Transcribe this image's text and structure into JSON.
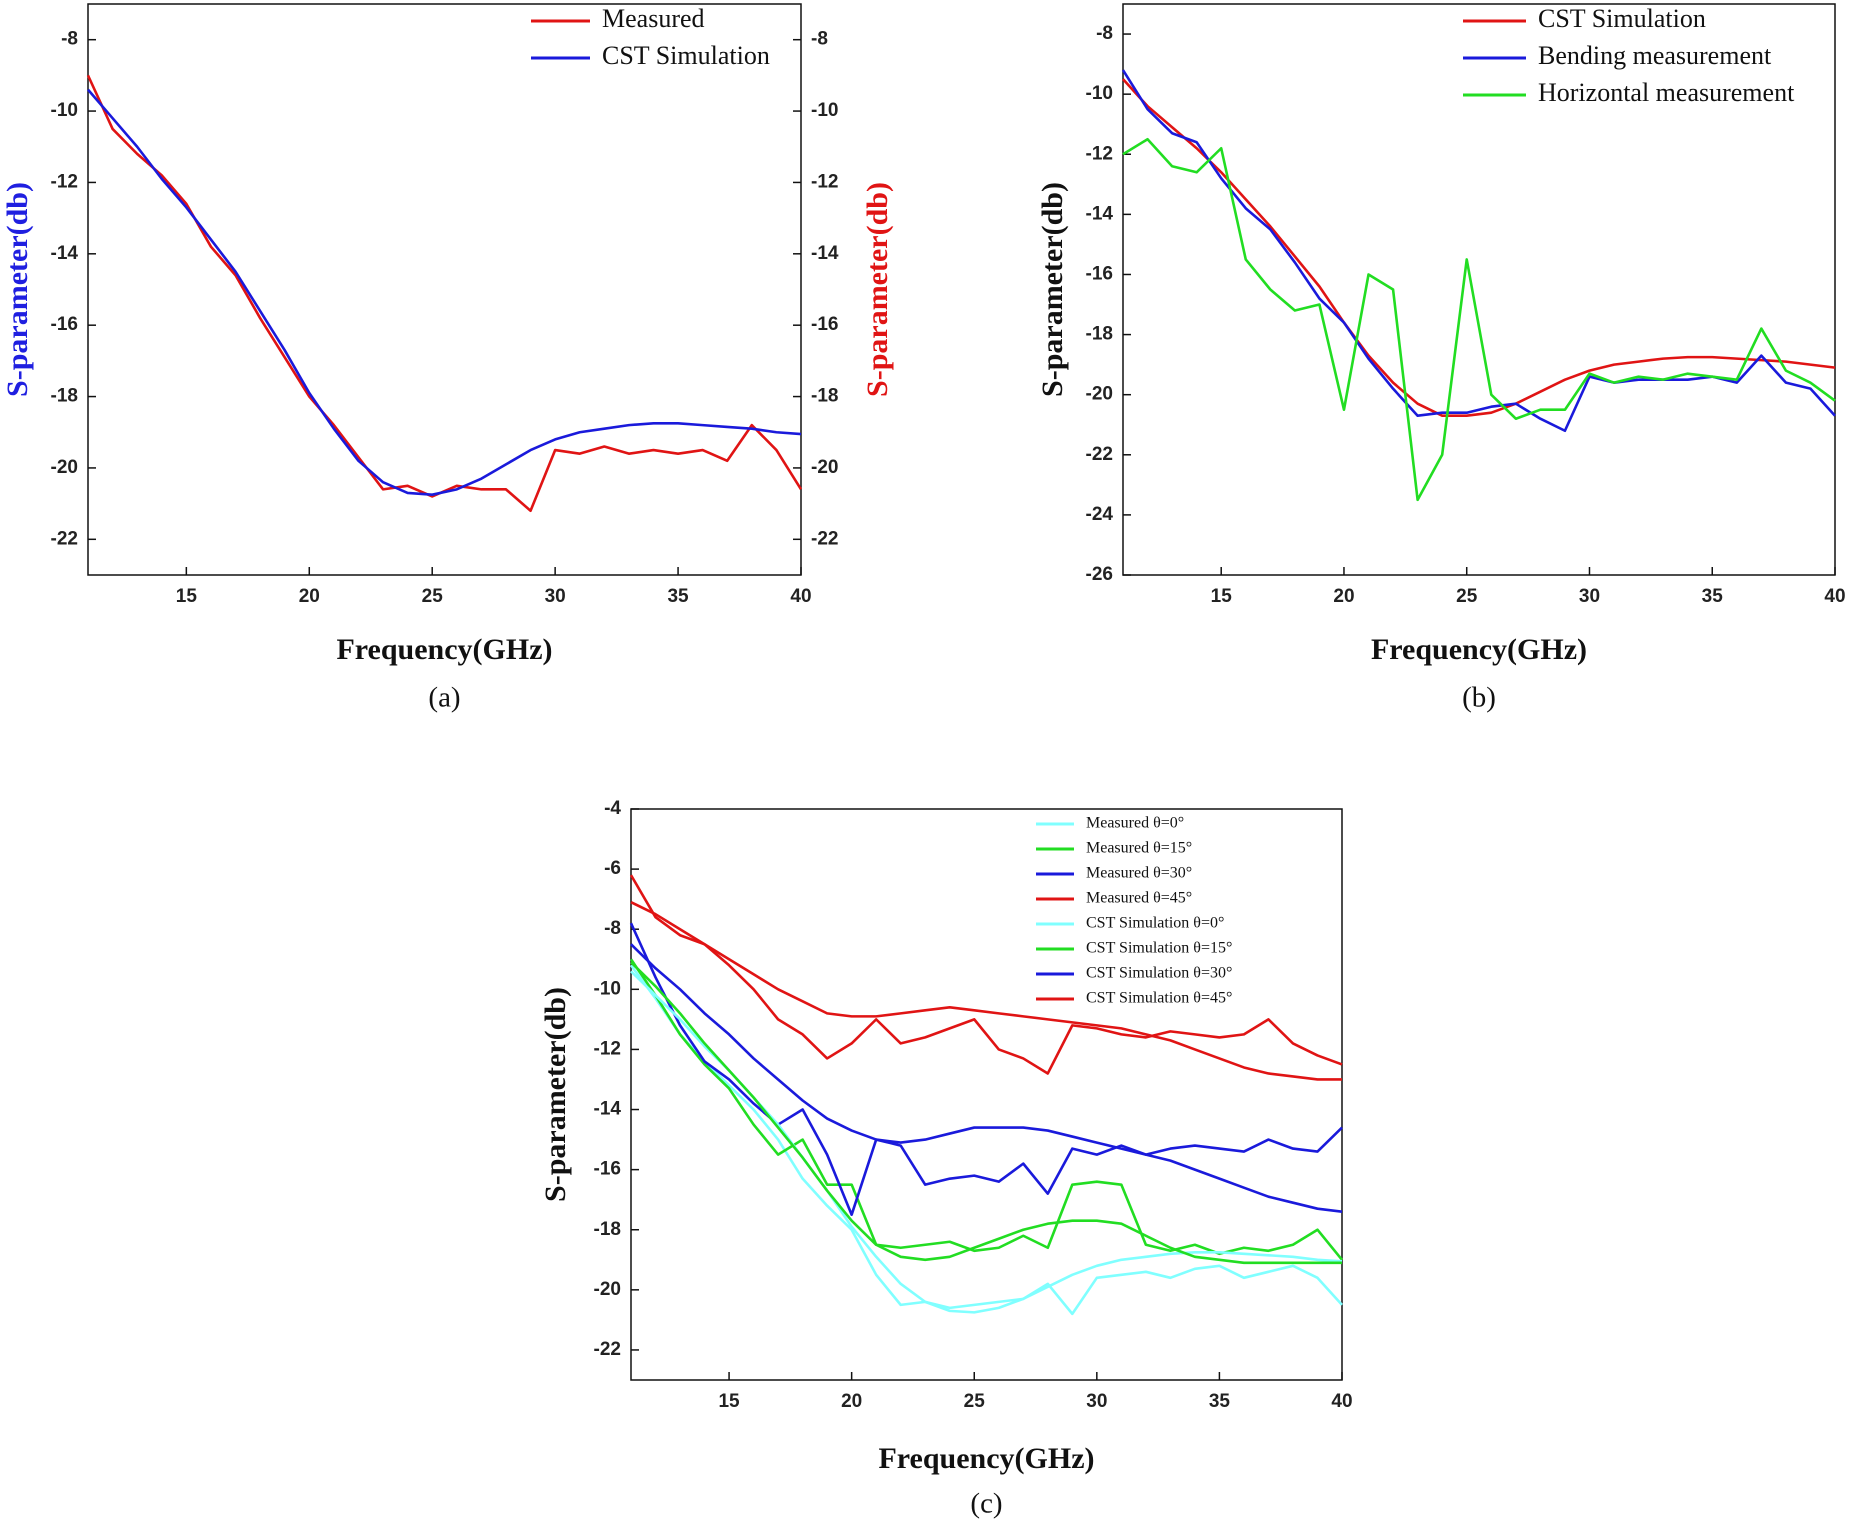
{
  "chart_data": [
    {
      "type": "line",
      "caption": "(a)",
      "xlabel": "Frequency(GHz)",
      "ylabel": "S-parameter(db)",
      "y2label": "S-parameter(db)",
      "xlim": [
        11,
        40
      ],
      "xticks": [
        15,
        20,
        25,
        30,
        35,
        40
      ],
      "ylim": [
        -23,
        -7
      ],
      "yticks": [
        -8,
        -10,
        -12,
        -14,
        -16,
        -18,
        -20,
        -22
      ],
      "y2lim": [
        -23,
        -7
      ],
      "y2ticks": [
        -8,
        -10,
        -12,
        -14,
        -16,
        -18,
        -20,
        -22
      ],
      "x": [
        11,
        12,
        13,
        14,
        15,
        16,
        17,
        18,
        19,
        20,
        21,
        22,
        23,
        24,
        25,
        26,
        27,
        28,
        29,
        30,
        31,
        32,
        33,
        34,
        35,
        36,
        37,
        38,
        39,
        40
      ],
      "series": [
        {
          "name": "Measured",
          "color": "#e01414",
          "axis": "y2",
          "values": [
            -9.0,
            -10.5,
            -11.2,
            -11.8,
            -12.6,
            -13.8,
            -14.6,
            -15.8,
            -16.9,
            -18.0,
            -18.8,
            -19.7,
            -20.6,
            -20.5,
            -20.8,
            -20.5,
            -20.6,
            -20.6,
            -21.2,
            -19.5,
            -19.6,
            -19.4,
            -19.6,
            -19.5,
            -19.6,
            -19.5,
            -19.8,
            -18.8,
            -19.5,
            -20.6
          ]
        },
        {
          "name": "CST Simulation",
          "color": "#1a1adb",
          "values": [
            -9.4,
            -10.2,
            -11.0,
            -11.9,
            -12.7,
            -13.6,
            -14.5,
            -15.6,
            -16.7,
            -17.9,
            -18.9,
            -19.8,
            -20.4,
            -20.7,
            -20.75,
            -20.6,
            -20.3,
            -19.9,
            -19.5,
            -19.2,
            -19.0,
            -18.9,
            -18.8,
            -18.75,
            -18.75,
            -18.8,
            -18.85,
            -18.9,
            -19.0,
            -19.05
          ]
        }
      ]
    },
    {
      "type": "line",
      "caption": "(b)",
      "xlabel": "Frequency(GHz)",
      "ylabel": "S-parameter(db)",
      "xlim": [
        11,
        40
      ],
      "xticks": [
        15,
        20,
        25,
        30,
        35,
        40
      ],
      "ylim": [
        -26,
        -7
      ],
      "yticks": [
        -8,
        -10,
        -12,
        -14,
        -16,
        -18,
        -20,
        -22,
        -24,
        -26
      ],
      "x": [
        11,
        12,
        13,
        14,
        15,
        16,
        17,
        18,
        19,
        20,
        21,
        22,
        23,
        24,
        25,
        26,
        27,
        28,
        29,
        30,
        31,
        32,
        33,
        34,
        35,
        36,
        37,
        38,
        39,
        40
      ],
      "series": [
        {
          "name": "CST Simulation",
          "color": "#e01414",
          "values": [
            -9.5,
            -10.4,
            -11.1,
            -11.8,
            -12.6,
            -13.5,
            -14.4,
            -15.4,
            -16.4,
            -17.6,
            -18.7,
            -19.6,
            -20.3,
            -20.7,
            -20.7,
            -20.6,
            -20.3,
            -19.9,
            -19.5,
            -19.2,
            -19.0,
            -18.9,
            -18.8,
            -18.75,
            -18.75,
            -18.8,
            -18.85,
            -18.9,
            -19.0,
            -19.1
          ]
        },
        {
          "name": "Bending measurement",
          "color": "#1a1adb",
          "values": [
            -9.2,
            -10.5,
            -11.3,
            -11.6,
            -12.8,
            -13.8,
            -14.5,
            -15.6,
            -16.8,
            -17.6,
            -18.8,
            -19.8,
            -20.7,
            -20.6,
            -20.6,
            -20.4,
            -20.3,
            -20.8,
            -21.2,
            -19.4,
            -19.6,
            -19.5,
            -19.5,
            -19.5,
            -19.4,
            -19.6,
            -18.7,
            -19.6,
            -19.8,
            -20.7
          ]
        },
        {
          "name": "Horizontal measurement",
          "color": "#22dd22",
          "values": [
            -12.0,
            -11.5,
            -12.4,
            -12.6,
            -11.8,
            -15.5,
            -16.5,
            -17.2,
            -17.0,
            -20.5,
            -16.0,
            -16.5,
            -23.5,
            -22.0,
            -15.5,
            -20.0,
            -20.8,
            -20.5,
            -20.5,
            -19.3,
            -19.6,
            -19.4,
            -19.5,
            -19.3,
            -19.4,
            -19.5,
            -17.8,
            -19.2,
            -19.6,
            -20.2
          ]
        }
      ]
    },
    {
      "type": "line",
      "caption": "(c)",
      "xlabel": "Frequency(GHz)",
      "ylabel": "S-parameter(db)",
      "xlim": [
        11,
        40
      ],
      "xticks": [
        15,
        20,
        25,
        30,
        35,
        40
      ],
      "ylim": [
        -23,
        -4
      ],
      "yticks": [
        -4,
        -6,
        -8,
        -10,
        -12,
        -14,
        -16,
        -18,
        -20,
        -22
      ],
      "x": [
        11,
        12,
        13,
        14,
        15,
        16,
        17,
        18,
        19,
        20,
        21,
        22,
        23,
        24,
        25,
        26,
        27,
        28,
        29,
        30,
        31,
        32,
        33,
        34,
        35,
        36,
        37,
        38,
        39,
        40
      ],
      "series": [
        {
          "name": "Measured  θ=0°",
          "color": "#80ffff",
          "values": [
            -9.2,
            -10.3,
            -11.5,
            -12.4,
            -13.2,
            -14.0,
            -15.0,
            -16.3,
            -17.2,
            -18.0,
            -19.5,
            -20.5,
            -20.4,
            -20.6,
            -20.5,
            -20.4,
            -20.3,
            -19.8,
            -20.8,
            -19.6,
            -19.5,
            -19.4,
            -19.6,
            -19.3,
            -19.2,
            -19.6,
            -19.4,
            -19.2,
            -19.6,
            -20.5
          ]
        },
        {
          "name": "Measured  θ=15°",
          "color": "#22dd22",
          "values": [
            -9.0,
            -10.2,
            -11.5,
            -12.5,
            -13.3,
            -14.5,
            -15.5,
            -15.0,
            -16.5,
            -16.5,
            -18.5,
            -18.6,
            -18.5,
            -18.4,
            -18.7,
            -18.6,
            -18.2,
            -18.6,
            -16.5,
            -16.4,
            -16.5,
            -18.5,
            -18.7,
            -18.5,
            -18.8,
            -18.6,
            -18.7,
            -18.5,
            -18.0,
            -19.0
          ]
        },
        {
          "name": "Measured  θ=30°",
          "color": "#1a1adb",
          "values": [
            -7.8,
            -9.6,
            -11.2,
            -12.4,
            -13.0,
            -13.8,
            -14.5,
            -14.0,
            -15.5,
            -17.5,
            -15.0,
            -15.2,
            -16.5,
            -16.3,
            -16.2,
            -16.4,
            -15.8,
            -16.8,
            -15.3,
            -15.5,
            -15.2,
            -15.5,
            -15.3,
            -15.2,
            -15.3,
            -15.4,
            -15.0,
            -15.3,
            -15.4,
            -14.6
          ]
        },
        {
          "name": "Measured  θ=45°",
          "color": "#e01414",
          "values": [
            -6.2,
            -7.6,
            -8.2,
            -8.5,
            -9.2,
            -10.0,
            -11.0,
            -11.5,
            -12.3,
            -11.8,
            -11.0,
            -11.8,
            -11.6,
            -11.3,
            -11.0,
            -12.0,
            -12.3,
            -12.8,
            -11.2,
            -11.3,
            -11.5,
            -11.6,
            -11.4,
            -11.5,
            -11.6,
            -11.5,
            -11.0,
            -11.8,
            -12.2,
            -12.5
          ]
        },
        {
          "name": "CST Simulation  θ=0°",
          "color": "#80ffff",
          "values": [
            -9.4,
            -10.2,
            -11.0,
            -11.9,
            -12.7,
            -13.6,
            -14.5,
            -15.6,
            -16.7,
            -17.9,
            -18.9,
            -19.8,
            -20.4,
            -20.7,
            -20.75,
            -20.6,
            -20.3,
            -19.9,
            -19.5,
            -19.2,
            -19.0,
            -18.9,
            -18.8,
            -18.75,
            -18.75,
            -18.8,
            -18.85,
            -18.9,
            -19.0,
            -19.05
          ]
        },
        {
          "name": "CST Simulation  θ=15°",
          "color": "#22dd22",
          "values": [
            -9.1,
            -9.9,
            -10.8,
            -11.8,
            -12.7,
            -13.6,
            -14.6,
            -15.6,
            -16.7,
            -17.7,
            -18.5,
            -18.9,
            -19.0,
            -18.9,
            -18.6,
            -18.3,
            -18.0,
            -17.8,
            -17.7,
            -17.7,
            -17.8,
            -18.2,
            -18.6,
            -18.9,
            -19.0,
            -19.1,
            -19.1,
            -19.1,
            -19.1,
            -19.1
          ]
        },
        {
          "name": "CST Simulation  θ=30°",
          "color": "#1a1adb",
          "values": [
            -8.5,
            -9.3,
            -10.0,
            -10.8,
            -11.5,
            -12.3,
            -13.0,
            -13.7,
            -14.3,
            -14.7,
            -15.0,
            -15.1,
            -15.0,
            -14.8,
            -14.6,
            -14.6,
            -14.6,
            -14.7,
            -14.9,
            -15.1,
            -15.3,
            -15.5,
            -15.7,
            -16.0,
            -16.3,
            -16.6,
            -16.9,
            -17.1,
            -17.3,
            -17.4
          ]
        },
        {
          "name": "CST Simulation  θ=45°",
          "color": "#e01414",
          "values": [
            -7.1,
            -7.5,
            -8.0,
            -8.5,
            -9.0,
            -9.5,
            -10.0,
            -10.4,
            -10.8,
            -10.9,
            -10.9,
            -10.8,
            -10.7,
            -10.6,
            -10.7,
            -10.8,
            -10.9,
            -11.0,
            -11.1,
            -11.2,
            -11.3,
            -11.5,
            -11.7,
            -12.0,
            -12.3,
            -12.6,
            -12.8,
            -12.9,
            -13.0,
            -13.0
          ]
        }
      ]
    }
  ]
}
